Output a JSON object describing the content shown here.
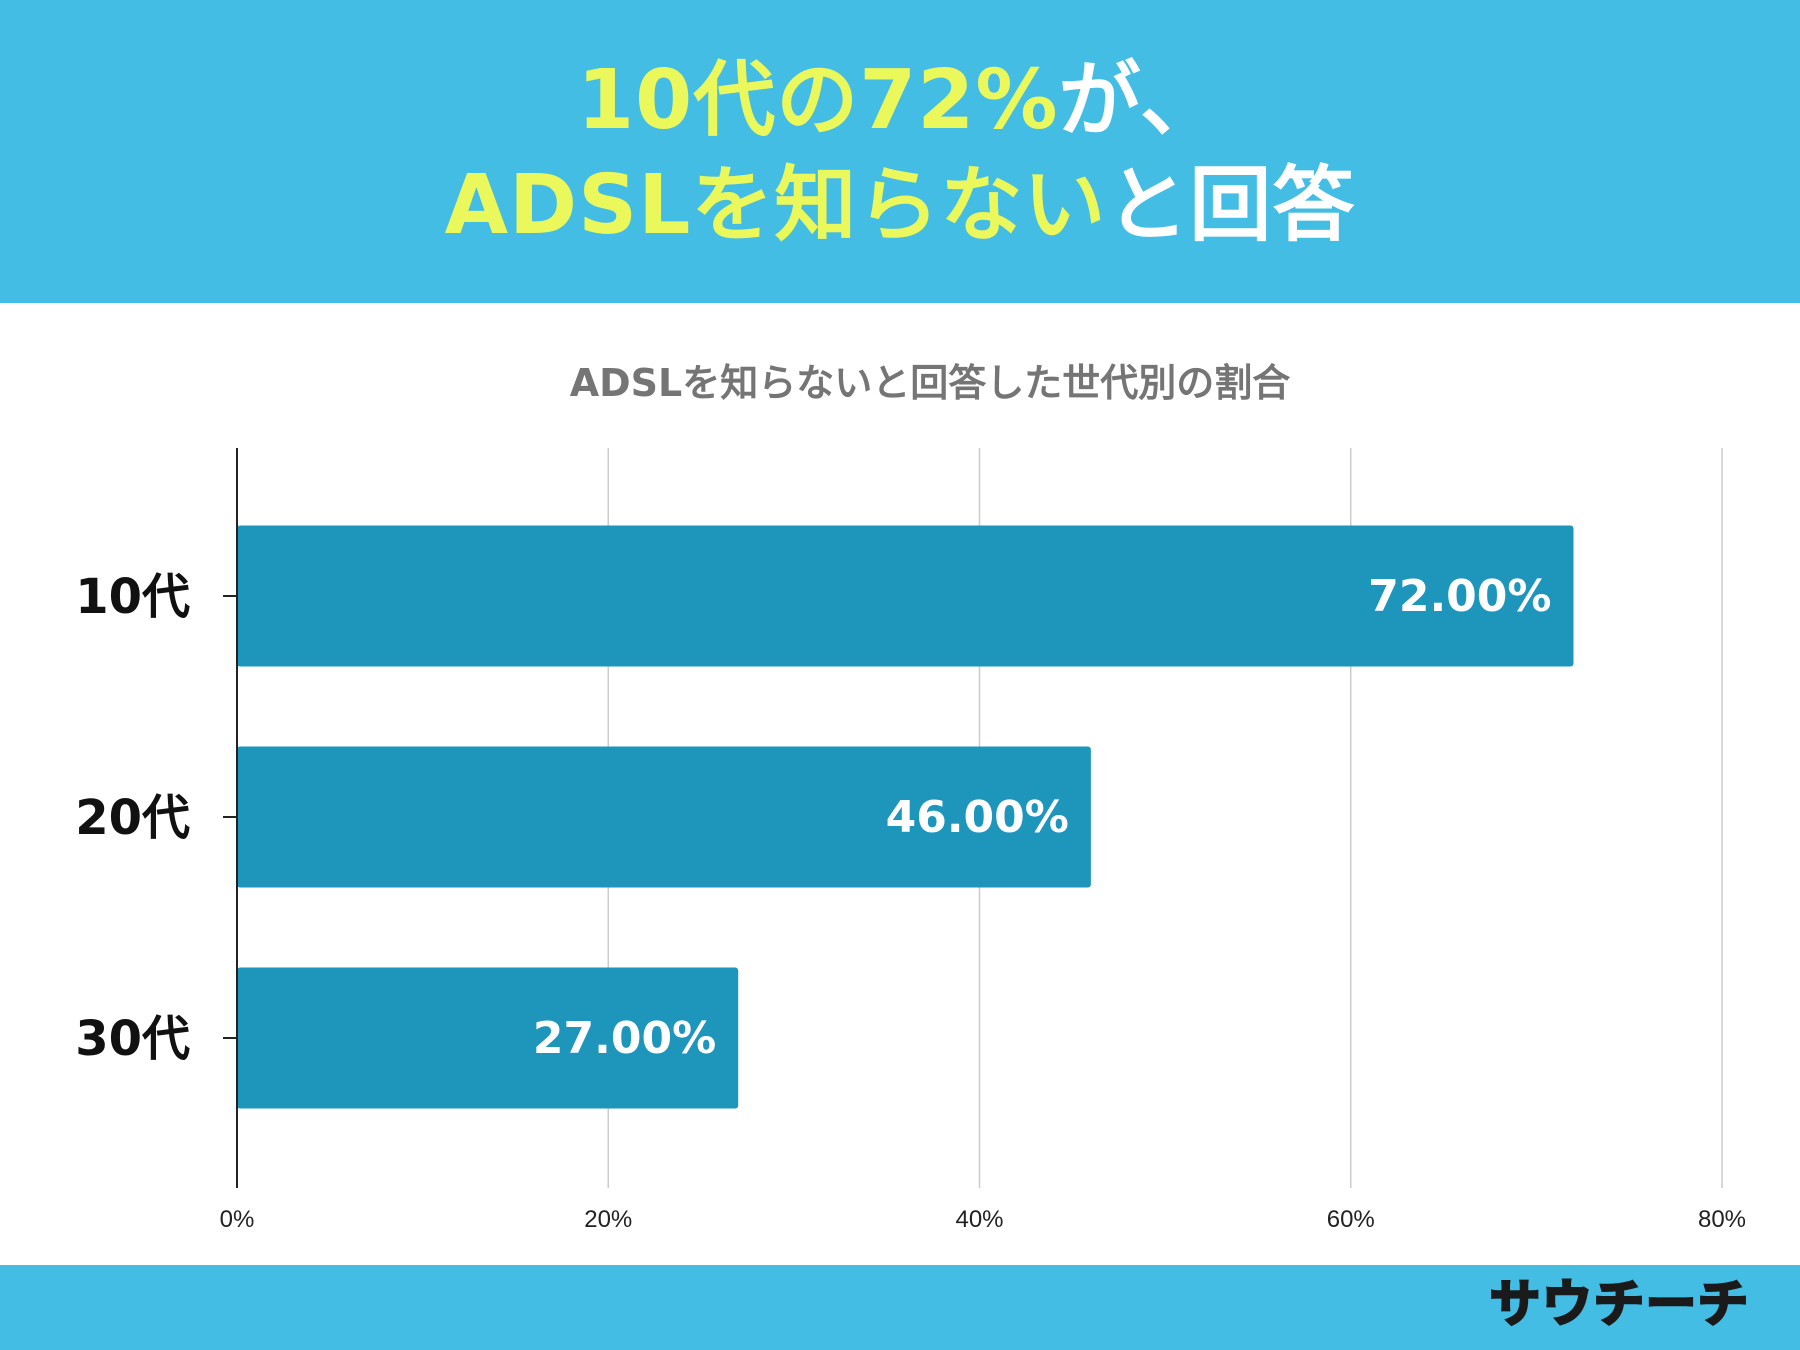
{
  "header": {
    "line1": [
      {
        "text": "10代の72%",
        "color": "yellow"
      },
      {
        "text": "が、",
        "color": "white"
      }
    ],
    "line2": [
      {
        "text": "ADSLを知らない",
        "color": "yellow"
      },
      {
        "text": "と回答",
        "color": "white"
      }
    ]
  },
  "chart_data": {
    "type": "bar",
    "orientation": "horizontal",
    "title": "ADSLを知らないと回答した世代別の割合",
    "categories": [
      "10代",
      "20代",
      "30代"
    ],
    "values": [
      72,
      46,
      27
    ],
    "data_labels": [
      "72.00%",
      "46.00%",
      "27.00%"
    ],
    "xlim": [
      0,
      80
    ],
    "x_ticks": [
      0,
      20,
      40,
      60,
      80
    ],
    "x_tick_labels": [
      "0%",
      "20%",
      "40%",
      "60%",
      "80%"
    ],
    "grid": true,
    "legend": "none",
    "bar_color": "#1e95bb"
  },
  "colors": {
    "banner": "#43bde4",
    "headline_accent": "#eaf85c",
    "headline_plain": "#ffffff",
    "bar": "#1e95bb"
  },
  "footer": {
    "logo_text": "サウチーチ"
  }
}
